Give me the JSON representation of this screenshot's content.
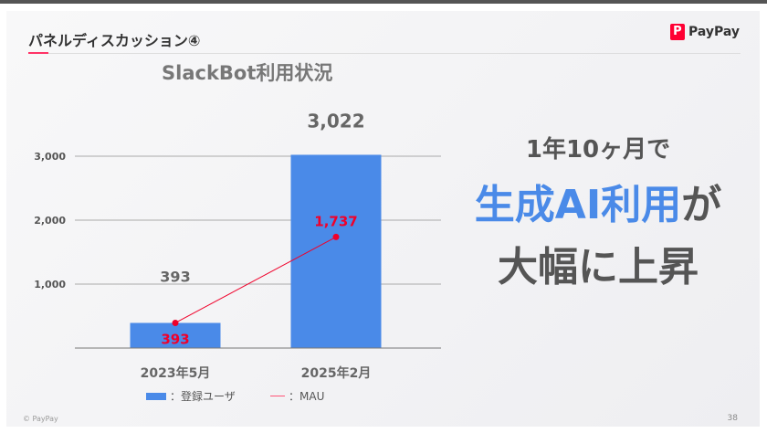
{
  "slide": {
    "title": "パネルディスカッション④",
    "logo_text": "PayPay",
    "logo_mark": "P",
    "footer": "© PayPay",
    "page_number": "38"
  },
  "message": {
    "line1": "1年10ヶ月で",
    "line2_highlight": "生成AI利用",
    "line2_rest": "が",
    "line3": "大幅に上昇",
    "highlight_color": "#4a8ae8"
  },
  "chart_data": {
    "type": "bar",
    "title": "SlackBot利用状況",
    "categories": [
      "2023年5月",
      "2025年2月"
    ],
    "ylim": [
      0,
      3000
    ],
    "yticks": [
      "1,000",
      "2,000",
      "3,000"
    ],
    "ytick_values": [
      1000,
      2000,
      3000
    ],
    "grid": true,
    "legend_placement": "bottom",
    "series": [
      {
        "name": "登録ユーザ",
        "kind": "bar",
        "color": "#4a8ae8",
        "values": [
          393,
          3022
        ],
        "labels": [
          "393",
          "3,022"
        ]
      },
      {
        "name": "MAU",
        "kind": "line",
        "color": "#f0002a",
        "values": [
          393,
          1737
        ],
        "labels": [
          "393",
          "1,737"
        ]
      }
    ],
    "legend": [
      "：登録ユーザ",
      "：MAU"
    ]
  }
}
